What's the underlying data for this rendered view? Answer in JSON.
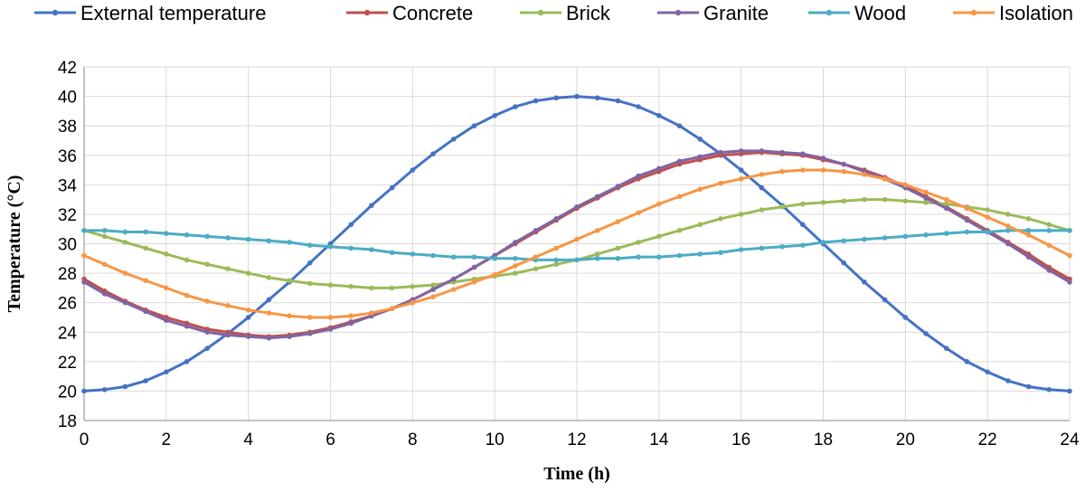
{
  "chart_data": {
    "type": "line",
    "xlabel": "Time  (h)",
    "ylabel": "Temperature  (°C)",
    "xlim": [
      0,
      24
    ],
    "ylim": [
      18,
      42
    ],
    "x_ticks": [
      0,
      2,
      4,
      6,
      8,
      10,
      12,
      14,
      16,
      18,
      20,
      22,
      24
    ],
    "y_ticks": [
      18,
      20,
      22,
      24,
      26,
      28,
      30,
      32,
      34,
      36,
      38,
      40,
      42
    ],
    "grid": true,
    "legend_position": "top",
    "x": [
      0,
      0.5,
      1,
      1.5,
      2,
      2.5,
      3,
      3.5,
      4,
      4.5,
      5,
      5.5,
      6,
      6.5,
      7,
      7.5,
      8,
      8.5,
      9,
      9.5,
      10,
      10.5,
      11,
      11.5,
      12,
      12.5,
      13,
      13.5,
      14,
      14.5,
      15,
      15.5,
      16,
      16.5,
      17,
      17.5,
      18,
      18.5,
      19,
      19.5,
      20,
      20.5,
      21,
      21.5,
      22,
      22.5,
      23,
      23.5,
      24
    ],
    "series": [
      {
        "name": "External temperature",
        "color": "#4472C4",
        "values": [
          20.0,
          20.1,
          20.3,
          20.7,
          21.3,
          22.0,
          22.9,
          23.9,
          25.0,
          26.2,
          27.4,
          28.7,
          30.0,
          31.3,
          32.6,
          33.8,
          35.0,
          36.1,
          37.1,
          38.0,
          38.7,
          39.3,
          39.7,
          39.9,
          40.0,
          39.9,
          39.7,
          39.3,
          38.7,
          38.0,
          37.1,
          36.1,
          35.0,
          33.8,
          32.6,
          31.3,
          30.0,
          28.7,
          27.4,
          26.2,
          25.0,
          23.9,
          22.9,
          22.0,
          21.3,
          20.7,
          20.3,
          20.1,
          20.0
        ]
      },
      {
        "name": "Concrete",
        "color": "#C0504D",
        "values": [
          27.6,
          26.8,
          26.1,
          25.5,
          25.0,
          24.6,
          24.2,
          24.0,
          23.8,
          23.7,
          23.8,
          24.0,
          24.3,
          24.7,
          25.1,
          25.6,
          26.2,
          26.9,
          27.6,
          28.4,
          29.2,
          30.0,
          30.8,
          31.6,
          32.4,
          33.1,
          33.8,
          34.4,
          34.9,
          35.4,
          35.7,
          36.0,
          36.1,
          36.2,
          36.1,
          36.0,
          35.7,
          35.4,
          35.0,
          34.5,
          33.9,
          33.2,
          32.5,
          31.7,
          30.9,
          30.1,
          29.3,
          28.4,
          27.6
        ]
      },
      {
        "name": "Brick",
        "color": "#9BBB59",
        "values": [
          30.9,
          30.5,
          30.1,
          29.7,
          29.3,
          28.9,
          28.6,
          28.3,
          28.0,
          27.7,
          27.5,
          27.3,
          27.2,
          27.1,
          27.0,
          27.0,
          27.1,
          27.2,
          27.4,
          27.6,
          27.8,
          28.0,
          28.3,
          28.6,
          28.9,
          29.3,
          29.7,
          30.1,
          30.5,
          30.9,
          31.3,
          31.7,
          32.0,
          32.3,
          32.5,
          32.7,
          32.8,
          32.9,
          33.0,
          33.0,
          32.9,
          32.8,
          32.7,
          32.5,
          32.3,
          32.0,
          31.7,
          31.3,
          30.9
        ]
      },
      {
        "name": "Granite",
        "color": "#8064A2",
        "values": [
          27.4,
          26.6,
          26.0,
          25.4,
          24.8,
          24.4,
          24.0,
          23.8,
          23.7,
          23.6,
          23.7,
          23.9,
          24.2,
          24.6,
          25.1,
          25.6,
          26.2,
          26.9,
          27.6,
          28.4,
          29.2,
          30.1,
          30.9,
          31.7,
          32.5,
          33.2,
          33.9,
          34.6,
          35.1,
          35.6,
          35.9,
          36.2,
          36.3,
          36.3,
          36.2,
          36.1,
          35.8,
          35.4,
          34.9,
          34.4,
          33.8,
          33.1,
          32.4,
          31.6,
          30.8,
          30.0,
          29.1,
          28.2,
          27.4
        ]
      },
      {
        "name": "Wood",
        "color": "#4BACC6",
        "values": [
          30.9,
          30.9,
          30.8,
          30.8,
          30.7,
          30.6,
          30.5,
          30.4,
          30.3,
          30.2,
          30.1,
          29.9,
          29.8,
          29.7,
          29.6,
          29.4,
          29.3,
          29.2,
          29.1,
          29.1,
          29.0,
          29.0,
          28.9,
          28.9,
          28.9,
          29.0,
          29.0,
          29.1,
          29.1,
          29.2,
          29.3,
          29.4,
          29.6,
          29.7,
          29.8,
          29.9,
          30.1,
          30.2,
          30.3,
          30.4,
          30.5,
          30.6,
          30.7,
          30.8,
          30.8,
          30.9,
          30.9,
          30.9,
          30.9
        ]
      },
      {
        "name": "Isolation",
        "color": "#F79646",
        "values": [
          29.2,
          28.6,
          28.0,
          27.5,
          27.0,
          26.5,
          26.1,
          25.8,
          25.5,
          25.3,
          25.1,
          25.0,
          25.0,
          25.1,
          25.3,
          25.6,
          26.0,
          26.4,
          26.9,
          27.4,
          27.9,
          28.5,
          29.1,
          29.7,
          30.3,
          30.9,
          31.5,
          32.1,
          32.7,
          33.2,
          33.7,
          34.1,
          34.4,
          34.7,
          34.9,
          35.0,
          35.0,
          34.9,
          34.7,
          34.4,
          34.0,
          33.5,
          33.0,
          32.4,
          31.8,
          31.2,
          30.6,
          29.9,
          29.2
        ]
      }
    ]
  }
}
